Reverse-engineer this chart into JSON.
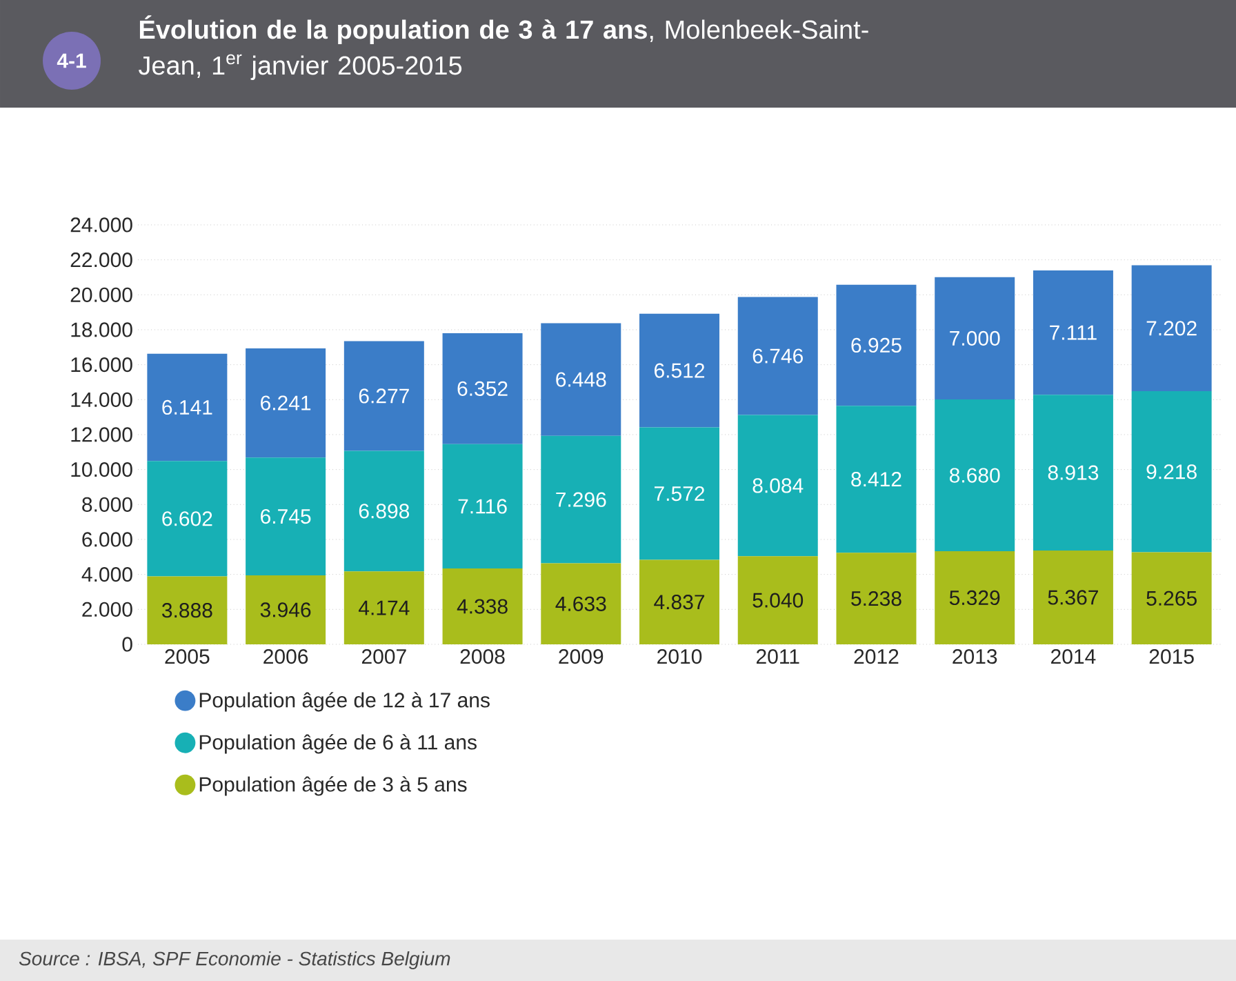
{
  "chart_data": {
    "type": "bar",
    "title": "**Évolution de la population de 3 à 17 ans**, Molenbeek-Saint-Jean, 1$^{er}$ janvier 2005-2015",
    "categories": [
      "2005",
      "2006",
      "2007",
      "2008",
      "2009",
      "2010",
      "2011",
      "2012",
      "2013",
      "2014",
      "2015"
    ],
    "stacked": true,
    "series": [
      {
        "name": "Population âgée de 3 à 5 ans",
        "color": "#a9bd1c",
        "values": [
          3888,
          3946,
          4174,
          4338,
          4633,
          4837,
          5040,
          5238,
          5329,
          5367,
          5265
        ],
        "value_labels": [
          "3.888",
          "3.946",
          "4.174",
          "4.338",
          "4.633",
          "4.837",
          "5.040",
          "5.238",
          "5.329",
          "5.367",
          "5.265"
        ]
      },
      {
        "name": "Population âgée de 6 à 11 ans",
        "color": "#17b0b5",
        "values": [
          6602,
          6745,
          6898,
          7116,
          7296,
          7572,
          8084,
          8412,
          8680,
          8913,
          9218
        ],
        "value_labels": [
          "6.602",
          "6.745",
          "6.898",
          "7.116",
          "7.296",
          "7.572",
          "8.084",
          "8.412",
          "8.680",
          "8.913",
          "9.218"
        ]
      },
      {
        "name": "Population âgée de 12 à 17 ans",
        "color": "#3b7dc8",
        "values": [
          6141,
          6241,
          6277,
          6352,
          6448,
          6512,
          6746,
          6925,
          7000,
          7111,
          7202
        ],
        "value_labels": [
          "6.141",
          "6.241",
          "6.277",
          "6.352",
          "6.448",
          "6.512",
          "6.746",
          "6.925",
          "7.000",
          "7.111",
          "7.202"
        ]
      }
    ],
    "ylim": [
      0,
      24000
    ],
    "yticks": [
      0,
      {
        "value": 2000,
        "label": "2.000"
      },
      {
        "value": 4000,
        "label": "4.000"
      },
      {
        "value": 6000,
        "label": "6.000"
      },
      {
        "value": 8000,
        "label": "8.000"
      },
      {
        "value": 10000,
        "label": "10.000"
      },
      {
        "value": 12000,
        "label": "12.000"
      },
      {
        "value": 14000,
        "label": "14.000"
      },
      {
        "value": 16000,
        "label": "16.000"
      },
      {
        "value": 18000,
        "label": "18.000"
      },
      {
        "value": 20000,
        "label": "20.000"
      },
      {
        "value": 22000,
        "label": "22.000"
      },
      {
        "value": 24000,
        "label": "24.000"
      }
    ],
    "grid": "y",
    "legend": "bottom left",
    "annotations": [
      "4-1",
      "Source : IBSA, SPF Economie - Statistics Belgium"
    ]
  }
}
